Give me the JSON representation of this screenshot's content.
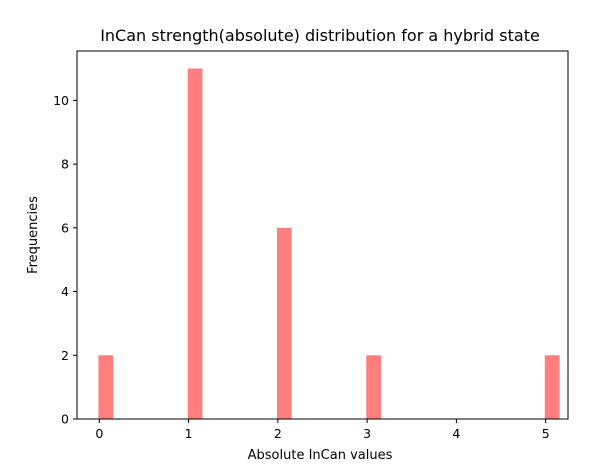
{
  "colors": {
    "bar": "#ff7f7f",
    "axis": "#000000",
    "background": "#ffffff"
  },
  "chart_data": {
    "type": "bar",
    "title": "InCan strength(absolute) distribution for a hybrid state",
    "xlabel": "Absolute InCan values",
    "ylabel": "Frequencies",
    "x": [
      0,
      1,
      2,
      3,
      4,
      5
    ],
    "values": [
      2,
      11,
      6,
      2,
      0,
      2
    ],
    "xlim": [
      -0.25,
      5.25
    ],
    "ylim": [
      0,
      11.55
    ],
    "xticks": [
      0,
      1,
      2,
      3,
      4,
      5
    ],
    "yticks": [
      0,
      2,
      4,
      6,
      8,
      10
    ],
    "grid": false
  }
}
